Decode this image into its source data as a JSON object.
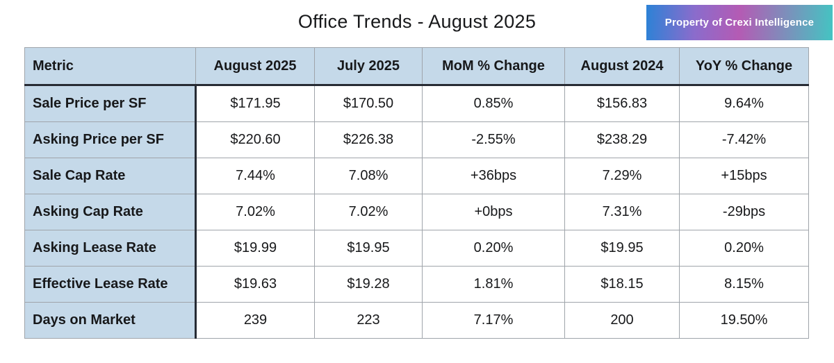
{
  "title": "Office Trends - August 2025",
  "badge": {
    "label": "Property of Crexi Intelligence",
    "gradient": [
      "#2c82d6",
      "#b45bb4",
      "#44c4c2"
    ],
    "text_color": "#ffffff"
  },
  "colors": {
    "header_bg": "#c5d9e9",
    "metric_column_bg": "#c5d9e9",
    "grid_line": "#9fa4aa",
    "heavy_line": "#272b34",
    "text": "#17181a",
    "page_bg": "#ffffff"
  },
  "chart_data": {
    "type": "table",
    "title": "Office Trends - August 2025",
    "columns": [
      "Metric",
      "August 2025",
      "July 2025",
      "MoM % Change",
      "August 2024",
      "YoY % Change"
    ],
    "rows": [
      [
        "Sale Price per SF",
        "$171.95",
        "$170.50",
        "0.85%",
        "$156.83",
        "9.64%"
      ],
      [
        "Asking Price per SF",
        "$220.60",
        "$226.38",
        "-2.55%",
        "$238.29",
        "-7.42%"
      ],
      [
        "Sale Cap Rate",
        "7.44%",
        "7.08%",
        "+36bps",
        "7.29%",
        "+15bps"
      ],
      [
        "Asking Cap Rate",
        "7.02%",
        "7.02%",
        "+0bps",
        "7.31%",
        "-29bps"
      ],
      [
        "Asking Lease Rate",
        "$19.99",
        "$19.95",
        "0.20%",
        "$19.95",
        "0.20%"
      ],
      [
        "Effective Lease Rate",
        "$19.63",
        "$19.28",
        "1.81%",
        "$18.15",
        "8.15%"
      ],
      [
        "Days on Market",
        "239",
        "223",
        "7.17%",
        "200",
        "19.50%"
      ]
    ]
  }
}
